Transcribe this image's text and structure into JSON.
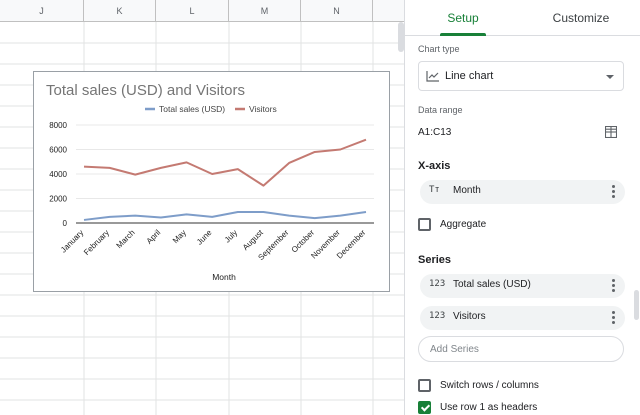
{
  "sheet": {
    "columns": [
      "J",
      "K",
      "L",
      "M",
      "N"
    ]
  },
  "chart": {
    "title": "Total sales (USD) and Visitors",
    "xlabel": "Month",
    "legend_position": "top"
  },
  "chart_data": {
    "type": "line",
    "title": "Total sales (USD) and Visitors",
    "xlabel": "Month",
    "ylabel": "",
    "ylim": [
      0,
      8000
    ],
    "yticks": [
      "0",
      "2000",
      "4000",
      "6000",
      "8000"
    ],
    "grid": true,
    "legend": "top",
    "categories": [
      "January",
      "February",
      "March",
      "April",
      "May",
      "June",
      "July",
      "August",
      "September",
      "October",
      "November",
      "December"
    ],
    "series": [
      {
        "name": "Total sales (USD)",
        "color": "#7e9dc9",
        "values": [
          250,
          500,
          600,
          450,
          700,
          500,
          900,
          900,
          600,
          400,
          600,
          900
        ]
      },
      {
        "name": "Visitors",
        "color": "#c47a72",
        "values": [
          4600,
          4500,
          3950,
          4500,
          4950,
          4000,
          4400,
          3050,
          4900,
          5800,
          6000,
          6800
        ]
      }
    ]
  },
  "panel": {
    "tabs": {
      "setup": "Setup",
      "customize": "Customize"
    },
    "chart_type_label": "Chart type",
    "chart_type_value": "Line chart",
    "data_range_label": "Data range",
    "data_range_value": "A1:C13",
    "xaxis_title": "X-axis",
    "xaxis_value": "Month",
    "aggregate_label": "Aggregate",
    "aggregate_checked": false,
    "series_title": "Series",
    "series": [
      {
        "icon": "123",
        "label": "Total sales (USD)"
      },
      {
        "icon": "123",
        "label": "Visitors"
      }
    ],
    "add_series": "Add Series",
    "switch_rows_label": "Switch rows / columns",
    "switch_rows_checked": false,
    "use_row1_label": "Use row 1 as headers",
    "use_row1_checked": true
  },
  "colors": {
    "accent": "#188038",
    "sales_line": "#7e9dc9",
    "visitors_line": "#c47a72"
  }
}
